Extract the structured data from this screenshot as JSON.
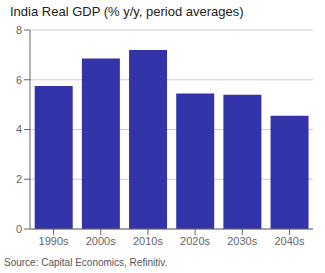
{
  "chart_data": {
    "type": "bar",
    "title": "India Real GDP (% y/y, period averages)",
    "categories": [
      "1990s",
      "2000s",
      "2010s",
      "2020s",
      "2030s",
      "2040s"
    ],
    "values": [
      5.75,
      6.85,
      7.2,
      5.45,
      5.4,
      4.55
    ],
    "color": "#3333aa",
    "ylim": [
      0,
      8
    ],
    "yticks": [
      0,
      2,
      4,
      6,
      8
    ],
    "grid": true,
    "source": "Source: Capital Economics, Refinitiv."
  }
}
